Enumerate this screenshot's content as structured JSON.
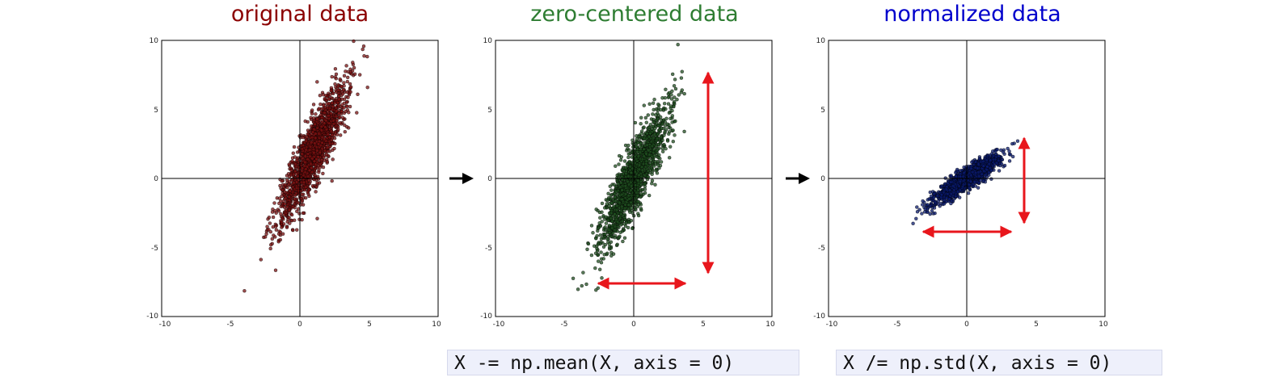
{
  "chart_data": [
    {
      "type": "scatter",
      "title": "original data",
      "xlim": [
        -10,
        10
      ],
      "ylim": [
        -10,
        10
      ],
      "xticks": [
        "-10",
        "-5",
        "0",
        "5",
        "10"
      ],
      "yticks": [
        "10",
        "5",
        "0",
        "-5",
        "-10"
      ],
      "series": [
        {
          "values": {
            "mean": [
              1.0,
              2.0
            ],
            "std_major": 2.8,
            "std_minor": 0.55,
            "angle_deg": 65,
            "count": 1500
          }
        }
      ],
      "grid": false,
      "colors": {
        "title": "#8b0000",
        "points": "#7a1010"
      }
    },
    {
      "type": "scatter",
      "title": "zero-centered data",
      "xlim": [
        -10,
        10
      ],
      "ylim": [
        -10,
        10
      ],
      "xticks": [
        "-10",
        "-5",
        "0",
        "5",
        "10"
      ],
      "yticks": [
        "10",
        "5",
        "0",
        "-5",
        "-10"
      ],
      "series": [
        {
          "values": {
            "mean": [
              0.0,
              0.0
            ],
            "std_major": 2.8,
            "std_minor": 0.55,
            "angle_deg": 65,
            "count": 1500
          }
        }
      ],
      "grid": false,
      "colors": {
        "title": "#2e7d32",
        "points": "#1f4d1f"
      }
    },
    {
      "type": "scatter",
      "title": "normalized data",
      "xlim": [
        -10,
        10
      ],
      "ylim": [
        -10,
        10
      ],
      "xticks": [
        "-10",
        "-5",
        "0",
        "5",
        "10"
      ],
      "yticks": [
        "10",
        "5",
        "0",
        "-5",
        "-10"
      ],
      "series": [
        {
          "values": {
            "mean": [
              0.0,
              0.0
            ],
            "std_major": 1.4,
            "std_minor": 0.3,
            "angle_deg": 35,
            "count": 1500
          }
        }
      ],
      "grid": false,
      "colors": {
        "title": "#0000cc",
        "points": "#0a1a6e"
      }
    }
  ],
  "code": {
    "line1": "X -= np.mean(X, axis = 0)",
    "line2": "X /= np.std(X, axis = 0)"
  },
  "colors": {
    "arrow_red": "#e8161c",
    "arrow_black": "#000000",
    "code_bg": "#eef0fb"
  }
}
